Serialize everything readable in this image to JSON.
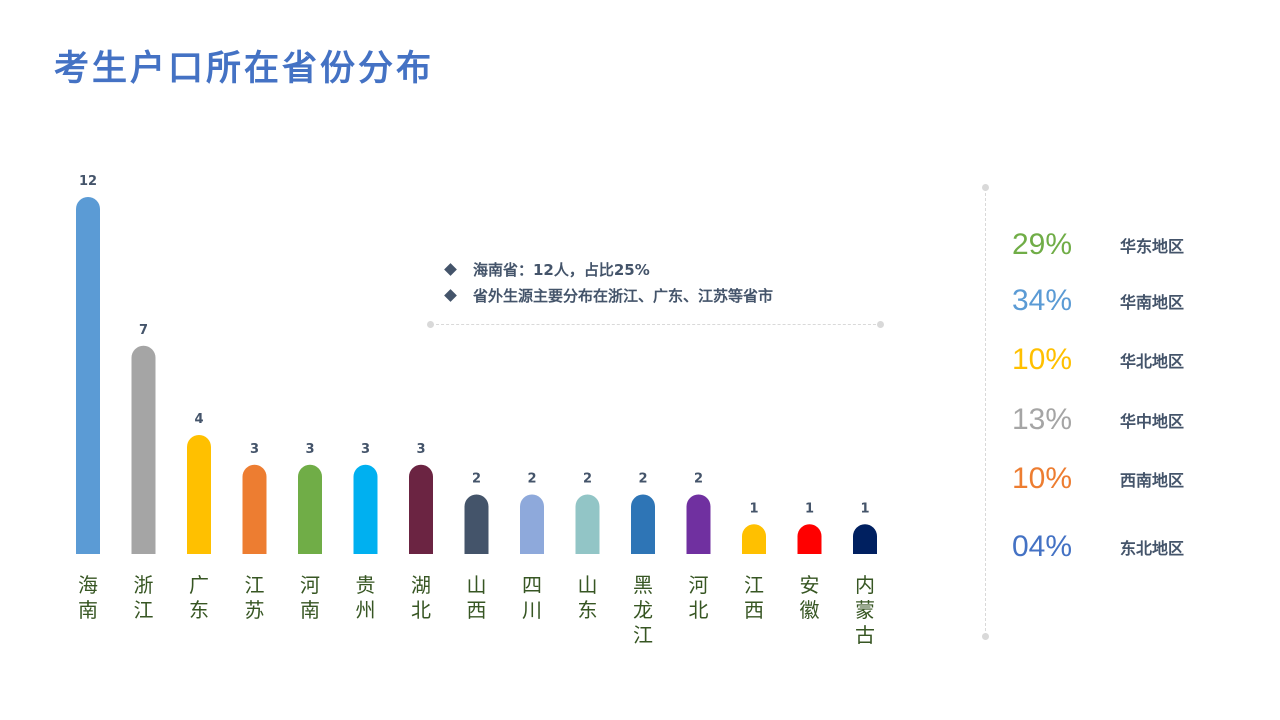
{
  "title": "考生户口所在省份分布",
  "notes": [
    "海南省：12人，占比25%",
    "省外生源主要分布在浙江、广东、江苏等省市"
  ],
  "regions": [
    {
      "percent": "29%",
      "name": "华东地区",
      "color": "#70AD47"
    },
    {
      "percent": "34%",
      "name": "华南地区",
      "color": "#5B9BD5"
    },
    {
      "percent": "10%",
      "name": "华北地区",
      "color": "#FFC000"
    },
    {
      "percent": "13%",
      "name": "华中地区",
      "color": "#A5A5A5"
    },
    {
      "percent": "10%",
      "name": "西南地区",
      "color": "#ED7D31"
    },
    {
      "percent": "04%",
      "name": "东北地区",
      "color": "#4472C4"
    }
  ],
  "chart_data": {
    "type": "bar",
    "title": "考生户口所在省份分布",
    "categories": [
      "海南",
      "浙江",
      "广东",
      "江苏",
      "河南",
      "贵州",
      "湖北",
      "山西",
      "四川",
      "山东",
      "黑龙江",
      "河北",
      "江西",
      "安徽",
      "内蒙古"
    ],
    "values": [
      12,
      7,
      4,
      3,
      3,
      3,
      3,
      2,
      2,
      2,
      2,
      2,
      1,
      1,
      1
    ],
    "colors": [
      "#5B9BD5",
      "#A5A5A5",
      "#FFC000",
      "#ED7D31",
      "#70AD47",
      "#00B0F0",
      "#6B2442",
      "#44546A",
      "#8EA9DB",
      "#92C5C6",
      "#2E75B6",
      "#7030A0",
      "#FFC000",
      "#FF0000",
      "#002060"
    ],
    "ylim": [
      0,
      12
    ],
    "grid": false,
    "data_labels": true
  }
}
